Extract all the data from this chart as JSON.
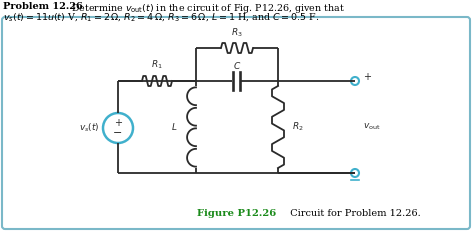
{
  "fig_label": "Figure P12.26",
  "fig_caption": "  Circuit for Problem 12.26.",
  "bg_color": "#ffffff",
  "box_edge_color": "#7ab8c8",
  "circuit_color": "#2a2a2a",
  "source_color": "#40b0cc",
  "label_color": "#1a8a1a",
  "figsize": [
    4.74,
    2.31
  ],
  "dpi": 100
}
